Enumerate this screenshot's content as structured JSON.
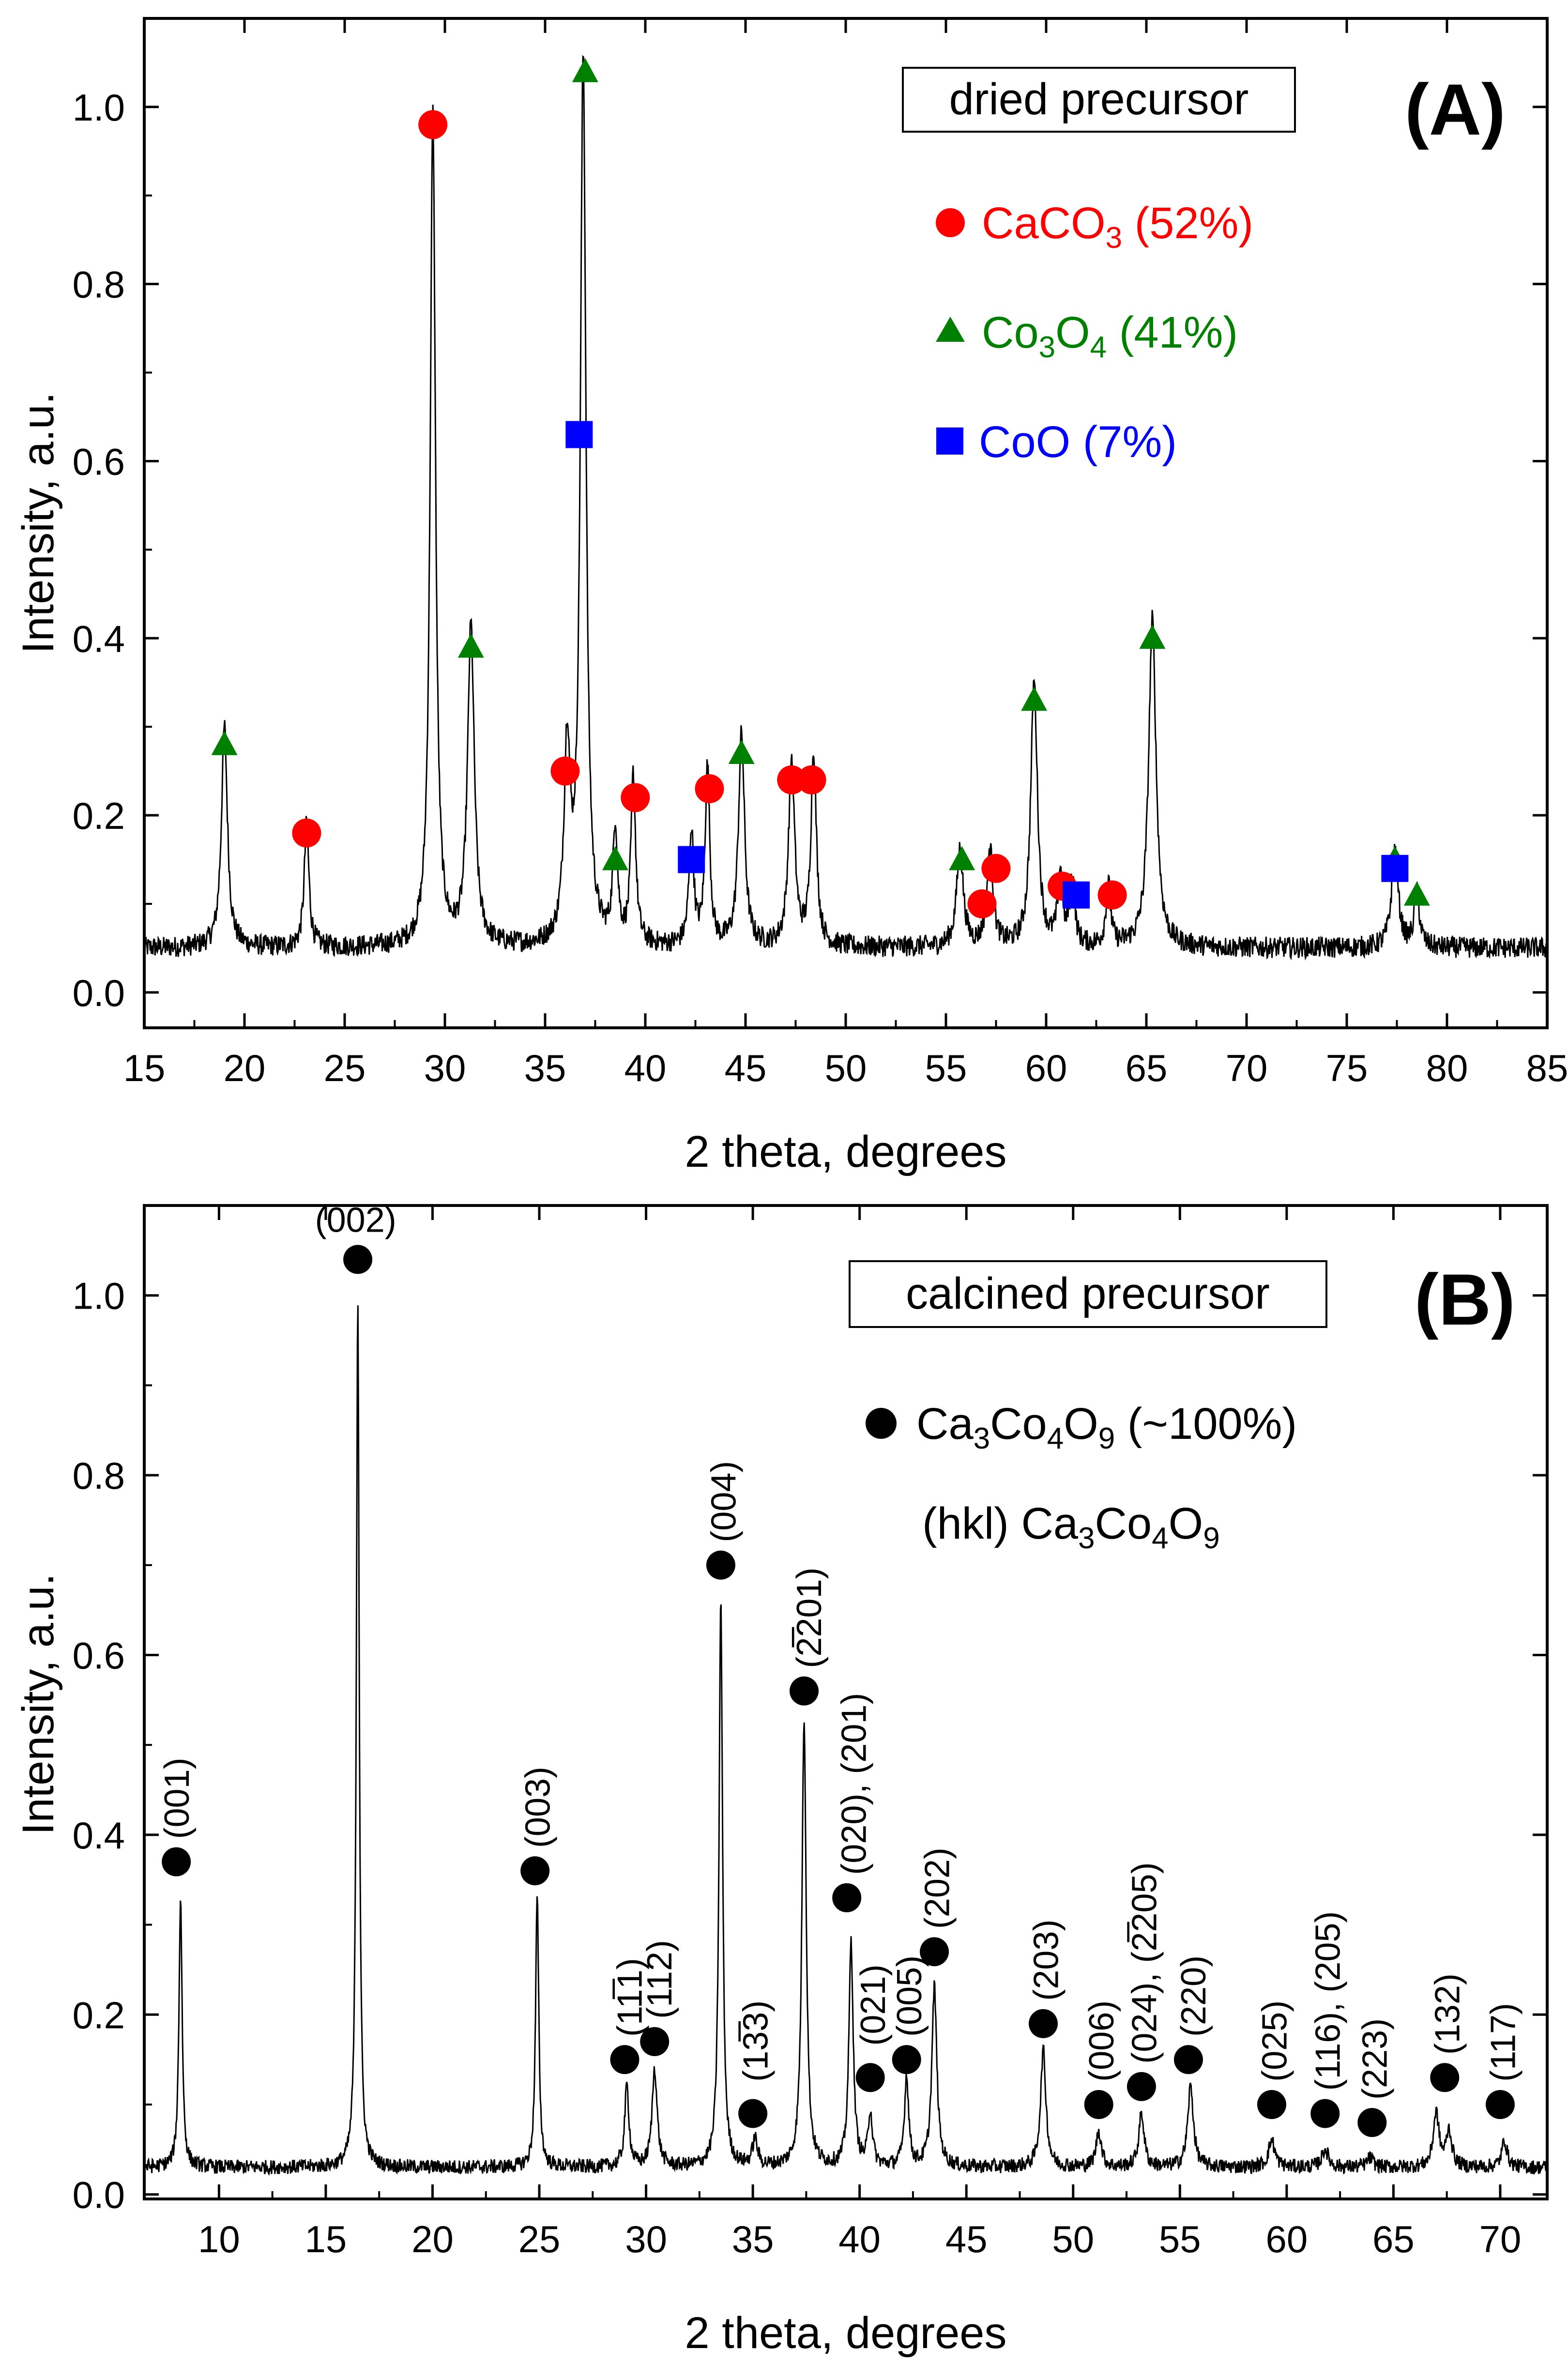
{
  "colors": {
    "axis": "#000000",
    "trace": "#000000",
    "caco3": "#ff0000",
    "co3o4": "#008000",
    "coo": "#0000ff",
    "ca3co4o9": "#000000"
  },
  "chart_data": [
    {
      "type": "line",
      "panel": "(A)",
      "box_label": "dried precursor",
      "xlabel": "2 theta, degrees",
      "ylabel": "Intensity, a.u.",
      "xlim": [
        15,
        85
      ],
      "ylim": [
        -0.04,
        1.1
      ],
      "xticks": [
        15,
        20,
        25,
        30,
        35,
        40,
        45,
        50,
        55,
        60,
        65,
        70,
        75,
        80,
        85
      ],
      "xtick_labels": [
        "15",
        "20",
        "25",
        "30",
        "35",
        "40",
        "45",
        "50",
        "55",
        "60",
        "65",
        "70",
        "75",
        "80",
        "85"
      ],
      "yticks": [
        0.0,
        0.2,
        0.4,
        0.6,
        0.8,
        1.0
      ],
      "ytick_labels": [
        "0.0",
        "0.2",
        "0.4",
        "0.6",
        "0.8",
        "1.0"
      ],
      "baseline": 0.05,
      "noise": 0.012,
      "peaks": [
        [
          19.0,
          0.25,
          0.18
        ],
        [
          23.1,
          0.14,
          0.14
        ],
        [
          29.4,
          0.94,
          0.16
        ],
        [
          31.3,
          0.36,
          0.2
        ],
        [
          36.1,
          0.22,
          0.18
        ],
        [
          36.9,
          1.0,
          0.17
        ],
        [
          38.5,
          0.13,
          0.14
        ],
        [
          39.4,
          0.19,
          0.14
        ],
        [
          42.3,
          0.13,
          0.14
        ],
        [
          43.1,
          0.2,
          0.14
        ],
        [
          44.8,
          0.24,
          0.18
        ],
        [
          47.3,
          0.21,
          0.18
        ],
        [
          48.4,
          0.22,
          0.16
        ],
        [
          55.7,
          0.11,
          0.2
        ],
        [
          57.2,
          0.11,
          0.18
        ],
        [
          59.4,
          0.3,
          0.2
        ],
        [
          60.7,
          0.08,
          0.14
        ],
        [
          61.3,
          0.08,
          0.14
        ],
        [
          63.1,
          0.07,
          0.14
        ],
        [
          65.3,
          0.37,
          0.22
        ],
        [
          77.4,
          0.11,
          0.2
        ],
        [
          78.5,
          0.06,
          0.16
        ]
      ],
      "series": [
        {
          "name": "CaCO3",
          "label_base": "CaCO",
          "label_sub": "3",
          "label_rest": " (52%)",
          "marker": "circle",
          "color": "#ff0000",
          "x": [
            23.1,
            29.4,
            36.0,
            39.5,
            43.2,
            47.3,
            48.3,
            56.8,
            57.5,
            60.8,
            63.3
          ],
          "y": [
            0.18,
            0.98,
            0.25,
            0.22,
            0.23,
            0.24,
            0.24,
            0.1,
            0.14,
            0.12,
            0.11
          ]
        },
        {
          "name": "Co3O4",
          "label_base": "Co",
          "label_sub": "3",
          "label_mid": "O",
          "label_sub2": "4",
          "label_rest": " (41%)",
          "marker": "triangle",
          "color": "#008000",
          "x": [
            19.0,
            31.3,
            37.0,
            38.5,
            44.8,
            55.8,
            59.4,
            65.3,
            77.4,
            78.5
          ],
          "y": [
            0.28,
            0.39,
            1.04,
            0.15,
            0.27,
            0.15,
            0.33,
            0.4,
            0.15,
            0.11
          ]
        },
        {
          "name": "CoO",
          "label_base": "CoO",
          "label_rest": " (7%)",
          "marker": "square",
          "color": "#0000ff",
          "x": [
            36.7,
            42.3,
            61.5,
            77.4
          ],
          "y": [
            0.63,
            0.15,
            0.11,
            0.14
          ]
        }
      ]
    },
    {
      "type": "line",
      "panel": "(B)",
      "box_label": "calcined precursor",
      "xlabel": "2 theta, degrees",
      "ylabel": "Intensity, a.u.",
      "xlim": [
        6.5,
        72.2
      ],
      "ylim": [
        -0.005,
        1.1
      ],
      "xticks": [
        10,
        15,
        20,
        25,
        30,
        35,
        40,
        45,
        50,
        55,
        60,
        65,
        70
      ],
      "xtick_labels": [
        "10",
        "15",
        "20",
        "25",
        "30",
        "35",
        "40",
        "45",
        "50",
        "55",
        "60",
        "65",
        "70"
      ],
      "yticks": [
        0.0,
        0.2,
        0.4,
        0.6,
        0.8,
        1.0
      ],
      "ytick_labels": [
        "0.0",
        "0.2",
        "0.4",
        "0.6",
        "0.8",
        "1.0"
      ],
      "baseline": 0.03,
      "noise": 0.008,
      "peaks": [
        [
          8.2,
          0.3,
          0.09
        ],
        [
          16.5,
          0.97,
          0.08
        ],
        [
          24.9,
          0.3,
          0.09
        ],
        [
          29.1,
          0.09,
          0.12
        ],
        [
          30.4,
          0.11,
          0.14
        ],
        [
          33.5,
          0.63,
          0.1
        ],
        [
          35.1,
          0.03,
          0.14
        ],
        [
          37.4,
          0.5,
          0.12
        ],
        [
          39.6,
          0.25,
          0.12
        ],
        [
          40.5,
          0.06,
          0.12
        ],
        [
          42.2,
          0.1,
          0.12
        ],
        [
          43.5,
          0.2,
          0.14
        ],
        [
          48.6,
          0.13,
          0.15
        ],
        [
          51.2,
          0.04,
          0.15
        ],
        [
          53.2,
          0.06,
          0.15
        ],
        [
          55.5,
          0.09,
          0.16
        ],
        [
          59.3,
          0.03,
          0.18
        ],
        [
          61.8,
          0.02,
          0.18
        ],
        [
          63.9,
          0.01,
          0.18
        ],
        [
          67.0,
          0.06,
          0.16
        ],
        [
          67.6,
          0.04,
          0.16
        ],
        [
          70.2,
          0.03,
          0.15
        ]
      ],
      "series": [
        {
          "name": "Ca3Co4O9",
          "label_parts": [
            "Ca",
            "3",
            "Co",
            "4",
            "O",
            "9",
            " (~100%)"
          ],
          "marker": "circle",
          "color": "#000000",
          "x": [
            8.0,
            16.5,
            24.8,
            29.0,
            30.4,
            35.0,
            33.5,
            37.4,
            39.4,
            40.5,
            42.2,
            43.5,
            48.6,
            51.2,
            53.2,
            55.4,
            59.3,
            61.8,
            64.0,
            67.4,
            70.0
          ],
          "y": [
            0.37,
            1.04,
            0.36,
            0.15,
            0.17,
            0.09,
            0.7,
            0.56,
            0.33,
            0.13,
            0.15,
            0.27,
            0.19,
            0.1,
            0.12,
            0.15,
            0.1,
            0.09,
            0.08,
            0.13,
            0.1
          ]
        }
      ],
      "hkl_note_parts": [
        "(hkl) Ca",
        "3",
        "Co",
        "4",
        "O",
        "9"
      ],
      "hkl_labels": [
        {
          "text": "(001)",
          "x": 8.0,
          "y": 0.39,
          "rotated": true
        },
        {
          "text": "(002)",
          "x": 16.4,
          "y": 1.06,
          "rotated": false
        },
        {
          "text": "(003)",
          "x": 24.9,
          "y": 0.38,
          "rotated": true
        },
        {
          "text": "(11̅1)",
          "x": 29.2,
          "y": 0.17,
          "rotated": true
        },
        {
          "text": "(112)",
          "x": 30.6,
          "y": 0.19,
          "rotated": true
        },
        {
          "text": "(13̅3)",
          "x": 35.1,
          "y": 0.12,
          "rotated": true
        },
        {
          "text": "(004)",
          "x": 33.6,
          "y": 0.72,
          "rotated": true
        },
        {
          "text": "(2̅201)",
          "x": 37.6,
          "y": 0.58,
          "rotated": true
        },
        {
          "text": "(020), (201)",
          "x": 39.7,
          "y": 0.35,
          "rotated": true
        },
        {
          "text": "(021)",
          "x": 40.6,
          "y": 0.16,
          "rotated": true
        },
        {
          "text": "(005)",
          "x": 42.3,
          "y": 0.17,
          "rotated": true
        },
        {
          "text": "(202)",
          "x": 43.6,
          "y": 0.29,
          "rotated": true
        },
        {
          "text": "(203)",
          "x": 48.7,
          "y": 0.21,
          "rotated": true
        },
        {
          "text": "(006)",
          "x": 51.3,
          "y": 0.12,
          "rotated": true
        },
        {
          "text": "(024), (2̅205)",
          "x": 53.3,
          "y": 0.14,
          "rotated": true
        },
        {
          "text": "(220)",
          "x": 55.6,
          "y": 0.17,
          "rotated": true
        },
        {
          "text": "(025)",
          "x": 59.4,
          "y": 0.12,
          "rotated": true
        },
        {
          "text": "(116), (205)",
          "x": 61.9,
          "y": 0.11,
          "rotated": true
        },
        {
          "text": "(223)",
          "x": 64.1,
          "y": 0.1,
          "rotated": true
        },
        {
          "text": "(132)",
          "x": 67.5,
          "y": 0.15,
          "rotated": true
        },
        {
          "text": "(117)",
          "x": 70.1,
          "y": 0.12,
          "rotated": true
        }
      ]
    }
  ]
}
